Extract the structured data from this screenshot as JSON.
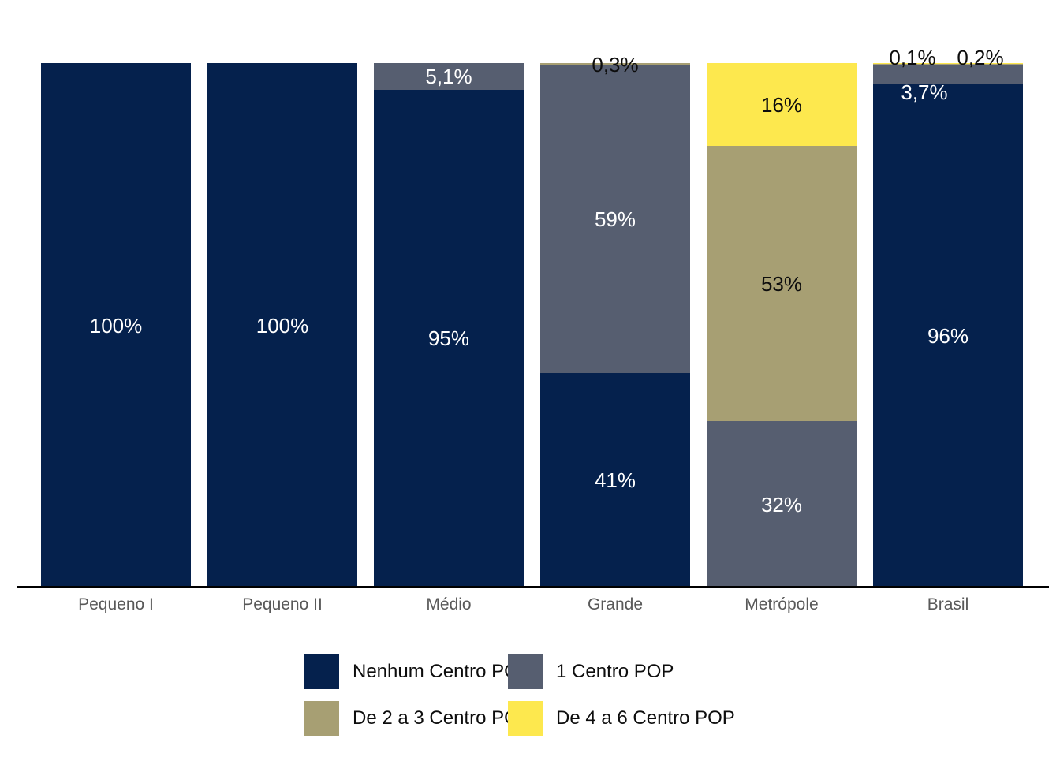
{
  "chart_data": {
    "type": "bar",
    "stacked": true,
    "percent_stacked": true,
    "title": "",
    "xlabel": "",
    "ylabel": "",
    "ylim": [
      0,
      100
    ],
    "unit": "%",
    "grid": false,
    "categories": [
      "Pequeno I",
      "Pequeno II",
      "Médio",
      "Grande",
      "Metrópole",
      "Brasil"
    ],
    "series": [
      {
        "name": "Nenhum Centro POP",
        "color": "#05214d",
        "values": [
          100,
          100,
          95,
          41,
          0,
          96
        ]
      },
      {
        "name": "1 Centro POP",
        "color": "#565e70",
        "values": [
          0,
          0,
          5.1,
          59,
          32,
          3.7
        ]
      },
      {
        "name": "De 2 a 3 Centro POP",
        "color": "#a79f73",
        "values": [
          0,
          0,
          0,
          0.3,
          53,
          0.1
        ]
      },
      {
        "name": "De 4 a 6 Centro POP",
        "color": "#fde84e",
        "values": [
          0,
          0,
          0,
          0,
          16,
          0.2
        ]
      }
    ],
    "data_labels": [
      {
        "category": 0,
        "series": 0,
        "text": "100%",
        "color": "#ffffff",
        "placement": "center"
      },
      {
        "category": 1,
        "series": 0,
        "text": "100%",
        "color": "#ffffff",
        "placement": "center"
      },
      {
        "category": 2,
        "series": 0,
        "text": "95%",
        "color": "#ffffff",
        "placement": "center"
      },
      {
        "category": 2,
        "series": 1,
        "text": "5,1%",
        "color": "#ffffff",
        "placement": "center"
      },
      {
        "category": 3,
        "series": 0,
        "text": "41%",
        "color": "#ffffff",
        "placement": "center"
      },
      {
        "category": 3,
        "series": 1,
        "text": "59%",
        "color": "#ffffff",
        "placement": "center"
      },
      {
        "category": 3,
        "series": 2,
        "text": "0,3%",
        "color": "#0d0d0d",
        "placement": "top-edge"
      },
      {
        "category": 4,
        "series": 1,
        "text": "32%",
        "color": "#ffffff",
        "placement": "center"
      },
      {
        "category": 4,
        "series": 2,
        "text": "53%",
        "color": "#0d0d0d",
        "placement": "center"
      },
      {
        "category": 4,
        "series": 3,
        "text": "16%",
        "color": "#0d0d0d",
        "placement": "center"
      },
      {
        "category": 5,
        "series": 0,
        "text": "96%",
        "color": "#ffffff",
        "placement": "center"
      },
      {
        "category": 5,
        "series": 1,
        "text": "3,7%",
        "color": "#ffffff",
        "placement": "below",
        "dx": -30
      },
      {
        "category": 5,
        "series": 2,
        "text": "0,1%",
        "color": "#0d0d0d",
        "placement": "above",
        "dx": -45
      },
      {
        "category": 5,
        "series": 3,
        "text": "0,2%",
        "color": "#0d0d0d",
        "placement": "above",
        "dx": 41
      }
    ],
    "legend": {
      "position": "bottom",
      "items": [
        {
          "label": "Nenhum Centro POP",
          "color": "#05214d"
        },
        {
          "label": "1 Centro POP",
          "color": "#565e70"
        },
        {
          "label": "De 2 a 3 Centro POP",
          "color": "#a79f73"
        },
        {
          "label": "De 4 a 6 Centro POP",
          "color": "#fde84e"
        }
      ],
      "text_color": "#0d0d0d"
    },
    "axis": {
      "baseline_color": "#000000",
      "category_label_color": "#595959"
    }
  }
}
